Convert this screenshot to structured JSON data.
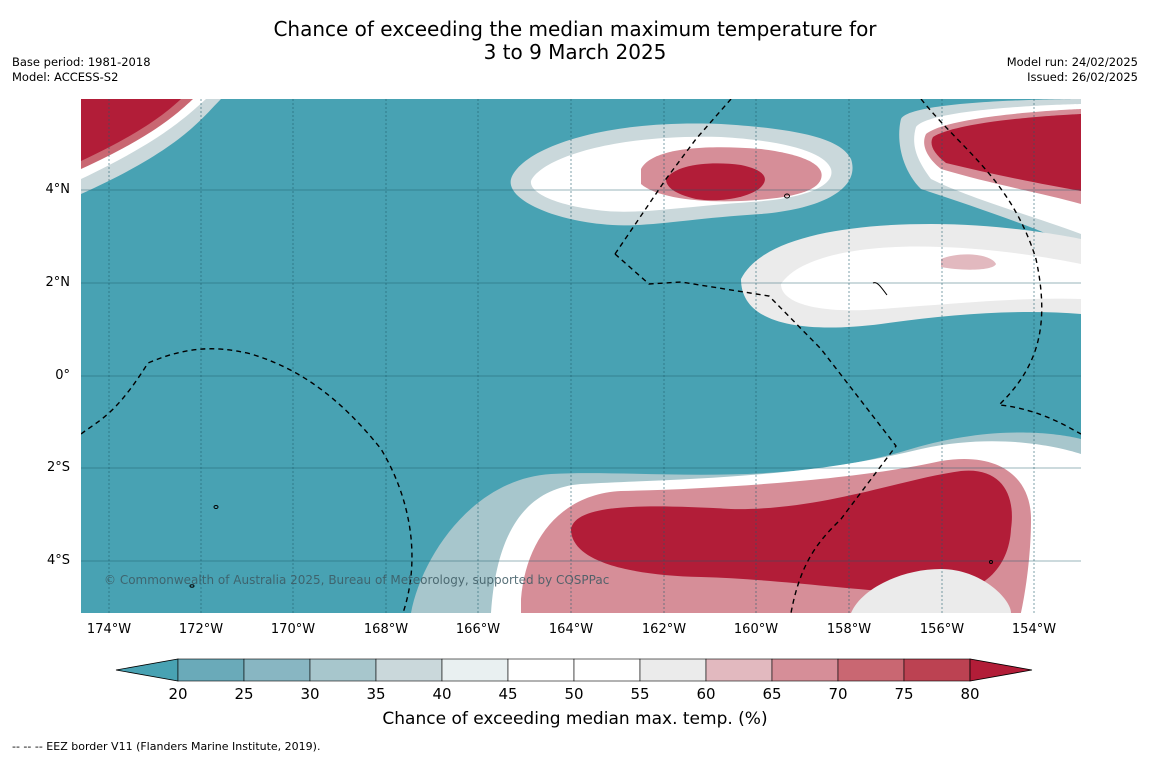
{
  "title": {
    "line1": "Chance of exceeding the median maximum temperature for",
    "line2": "3 to 9 March 2025"
  },
  "meta_left": {
    "base_period": "Base period: 1981-2018",
    "model": "Model: ACCESS-S2"
  },
  "meta_right": {
    "model_run": "Model run: 24/02/2025",
    "issued": "Issued: 26/02/2025"
  },
  "map": {
    "lat_labels": [
      "4°N",
      "2°N",
      "0°",
      "2°S",
      "4°S"
    ],
    "lon_labels": [
      "174°W",
      "172°W",
      "170°W",
      "168°W",
      "166°W",
      "164°W",
      "162°W",
      "160°W",
      "158°W",
      "156°W",
      "154°W"
    ],
    "copyright": "© Commonwealth of Australia 2025, Bureau of Meteorology, supported by COSPPac",
    "background_color": "#48a2b3"
  },
  "colorbar": {
    "ticks": [
      "20",
      "25",
      "30",
      "35",
      "40",
      "45",
      "50",
      "55",
      "60",
      "65",
      "70",
      "75",
      "80"
    ],
    "colors": [
      "#6aaab9",
      "#88b6c2",
      "#a7c6cc",
      "#cad8db",
      "#e9f0f1",
      "#ffffff",
      "#ffffff",
      "#ebebeb",
      "#e2b9bf",
      "#d68e98",
      "#c96772",
      "#bc4252"
    ],
    "under_color": "#48a2b3",
    "over_color": "#b21d38",
    "title": "Chance of exceeding median max. temp. (%)"
  },
  "footnote": "--  --  -- EEZ border V11 (Flanders Marine Institute, 2019)."
}
